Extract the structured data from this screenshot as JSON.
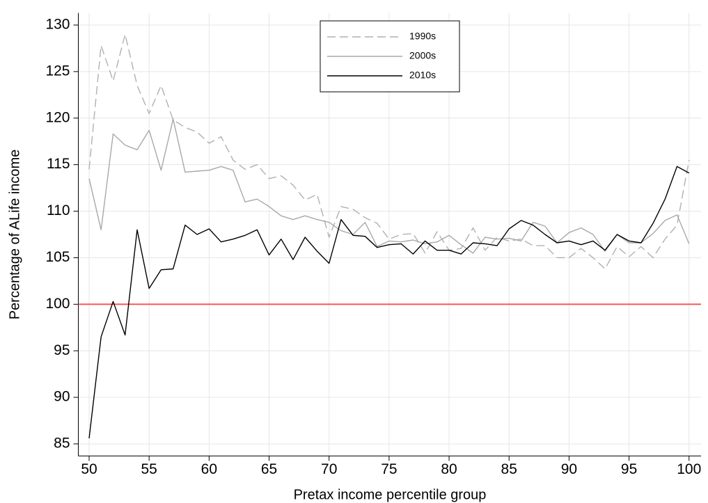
{
  "chart_data": {
    "type": "line",
    "x_label": "Pretax income percentile group",
    "y_label": "Percentage of ALife income",
    "x": [
      50,
      51,
      52,
      53,
      54,
      55,
      56,
      57,
      58,
      59,
      60,
      61,
      62,
      63,
      64,
      65,
      66,
      67,
      68,
      69,
      70,
      71,
      72,
      73,
      74,
      75,
      76,
      77,
      78,
      79,
      80,
      81,
      82,
      83,
      84,
      85,
      86,
      87,
      88,
      89,
      90,
      91,
      92,
      93,
      94,
      95,
      96,
      97,
      98,
      99,
      100
    ],
    "series": [
      {
        "name": "1990s",
        "color": "#b0b0b0",
        "dash": true,
        "values": [
          114.5,
          127.8,
          124,
          129,
          123.5,
          120.5,
          123.5,
          119.8,
          119,
          118.5,
          117.3,
          118,
          115.5,
          114.5,
          115,
          113.5,
          113.8,
          112.8,
          111.2,
          111.8,
          107.2,
          110.5,
          110.2,
          109.3,
          108.7,
          107,
          107.5,
          107.6,
          105.5,
          107.8,
          105.8,
          106,
          108.2,
          105.8,
          107.2,
          106.8,
          107,
          106.3,
          106.3,
          105,
          105,
          106,
          105,
          103.8,
          106.2,
          105.1,
          106.2,
          105,
          107,
          108.5,
          115.5
        ]
      },
      {
        "name": "2000s",
        "color": "#a8a8a8",
        "dash": false,
        "values": [
          113.5,
          108,
          118.3,
          117.1,
          116.6,
          118.7,
          114.4,
          119.9,
          114.2,
          114.3,
          114.4,
          114.8,
          114.4,
          111,
          111.3,
          110.5,
          109.5,
          109.1,
          109.5,
          109.1,
          108.8,
          107.9,
          107.5,
          108.8,
          106.2,
          106.8,
          106.7,
          106.9,
          106.5,
          106.7,
          107.4,
          106.4,
          105.5,
          107.2,
          107,
          107.1,
          106.8,
          108.8,
          108.4,
          106.6,
          107.7,
          108.2,
          107.5,
          105.7,
          107.5,
          106.6,
          106.6,
          107.6,
          109,
          109.6,
          106.5
        ]
      },
      {
        "name": "2010s",
        "color": "#000000",
        "dash": false,
        "values": [
          85.6,
          96.5,
          100.3,
          96.7,
          108,
          101.7,
          103.7,
          103.8,
          108.5,
          107.5,
          108.1,
          106.7,
          107,
          107.4,
          108,
          105.3,
          107,
          104.8,
          107.2,
          105.7,
          104.4,
          109.1,
          107.4,
          107.3,
          106.1,
          106.4,
          106.5,
          105.4,
          106.8,
          105.8,
          105.8,
          105.4,
          106.6,
          106.5,
          106.3,
          108.1,
          109,
          108.5,
          107.5,
          106.6,
          106.8,
          106.4,
          106.8,
          105.8,
          107.5,
          106.8,
          106.6,
          108.7,
          111.3,
          114.8,
          114.1
        ]
      }
    ],
    "reference_line": {
      "value": 100,
      "color": "#ff4a4a"
    },
    "xlim": [
      49.1,
      101
    ],
    "ylim": [
      83.7,
      131.3
    ],
    "xticks": [
      50,
      55,
      60,
      65,
      70,
      75,
      80,
      85,
      90,
      95,
      100
    ],
    "yticks": [
      85,
      90,
      95,
      100,
      105,
      110,
      115,
      120,
      125,
      130
    ],
    "grid": true,
    "legend": "top"
  }
}
